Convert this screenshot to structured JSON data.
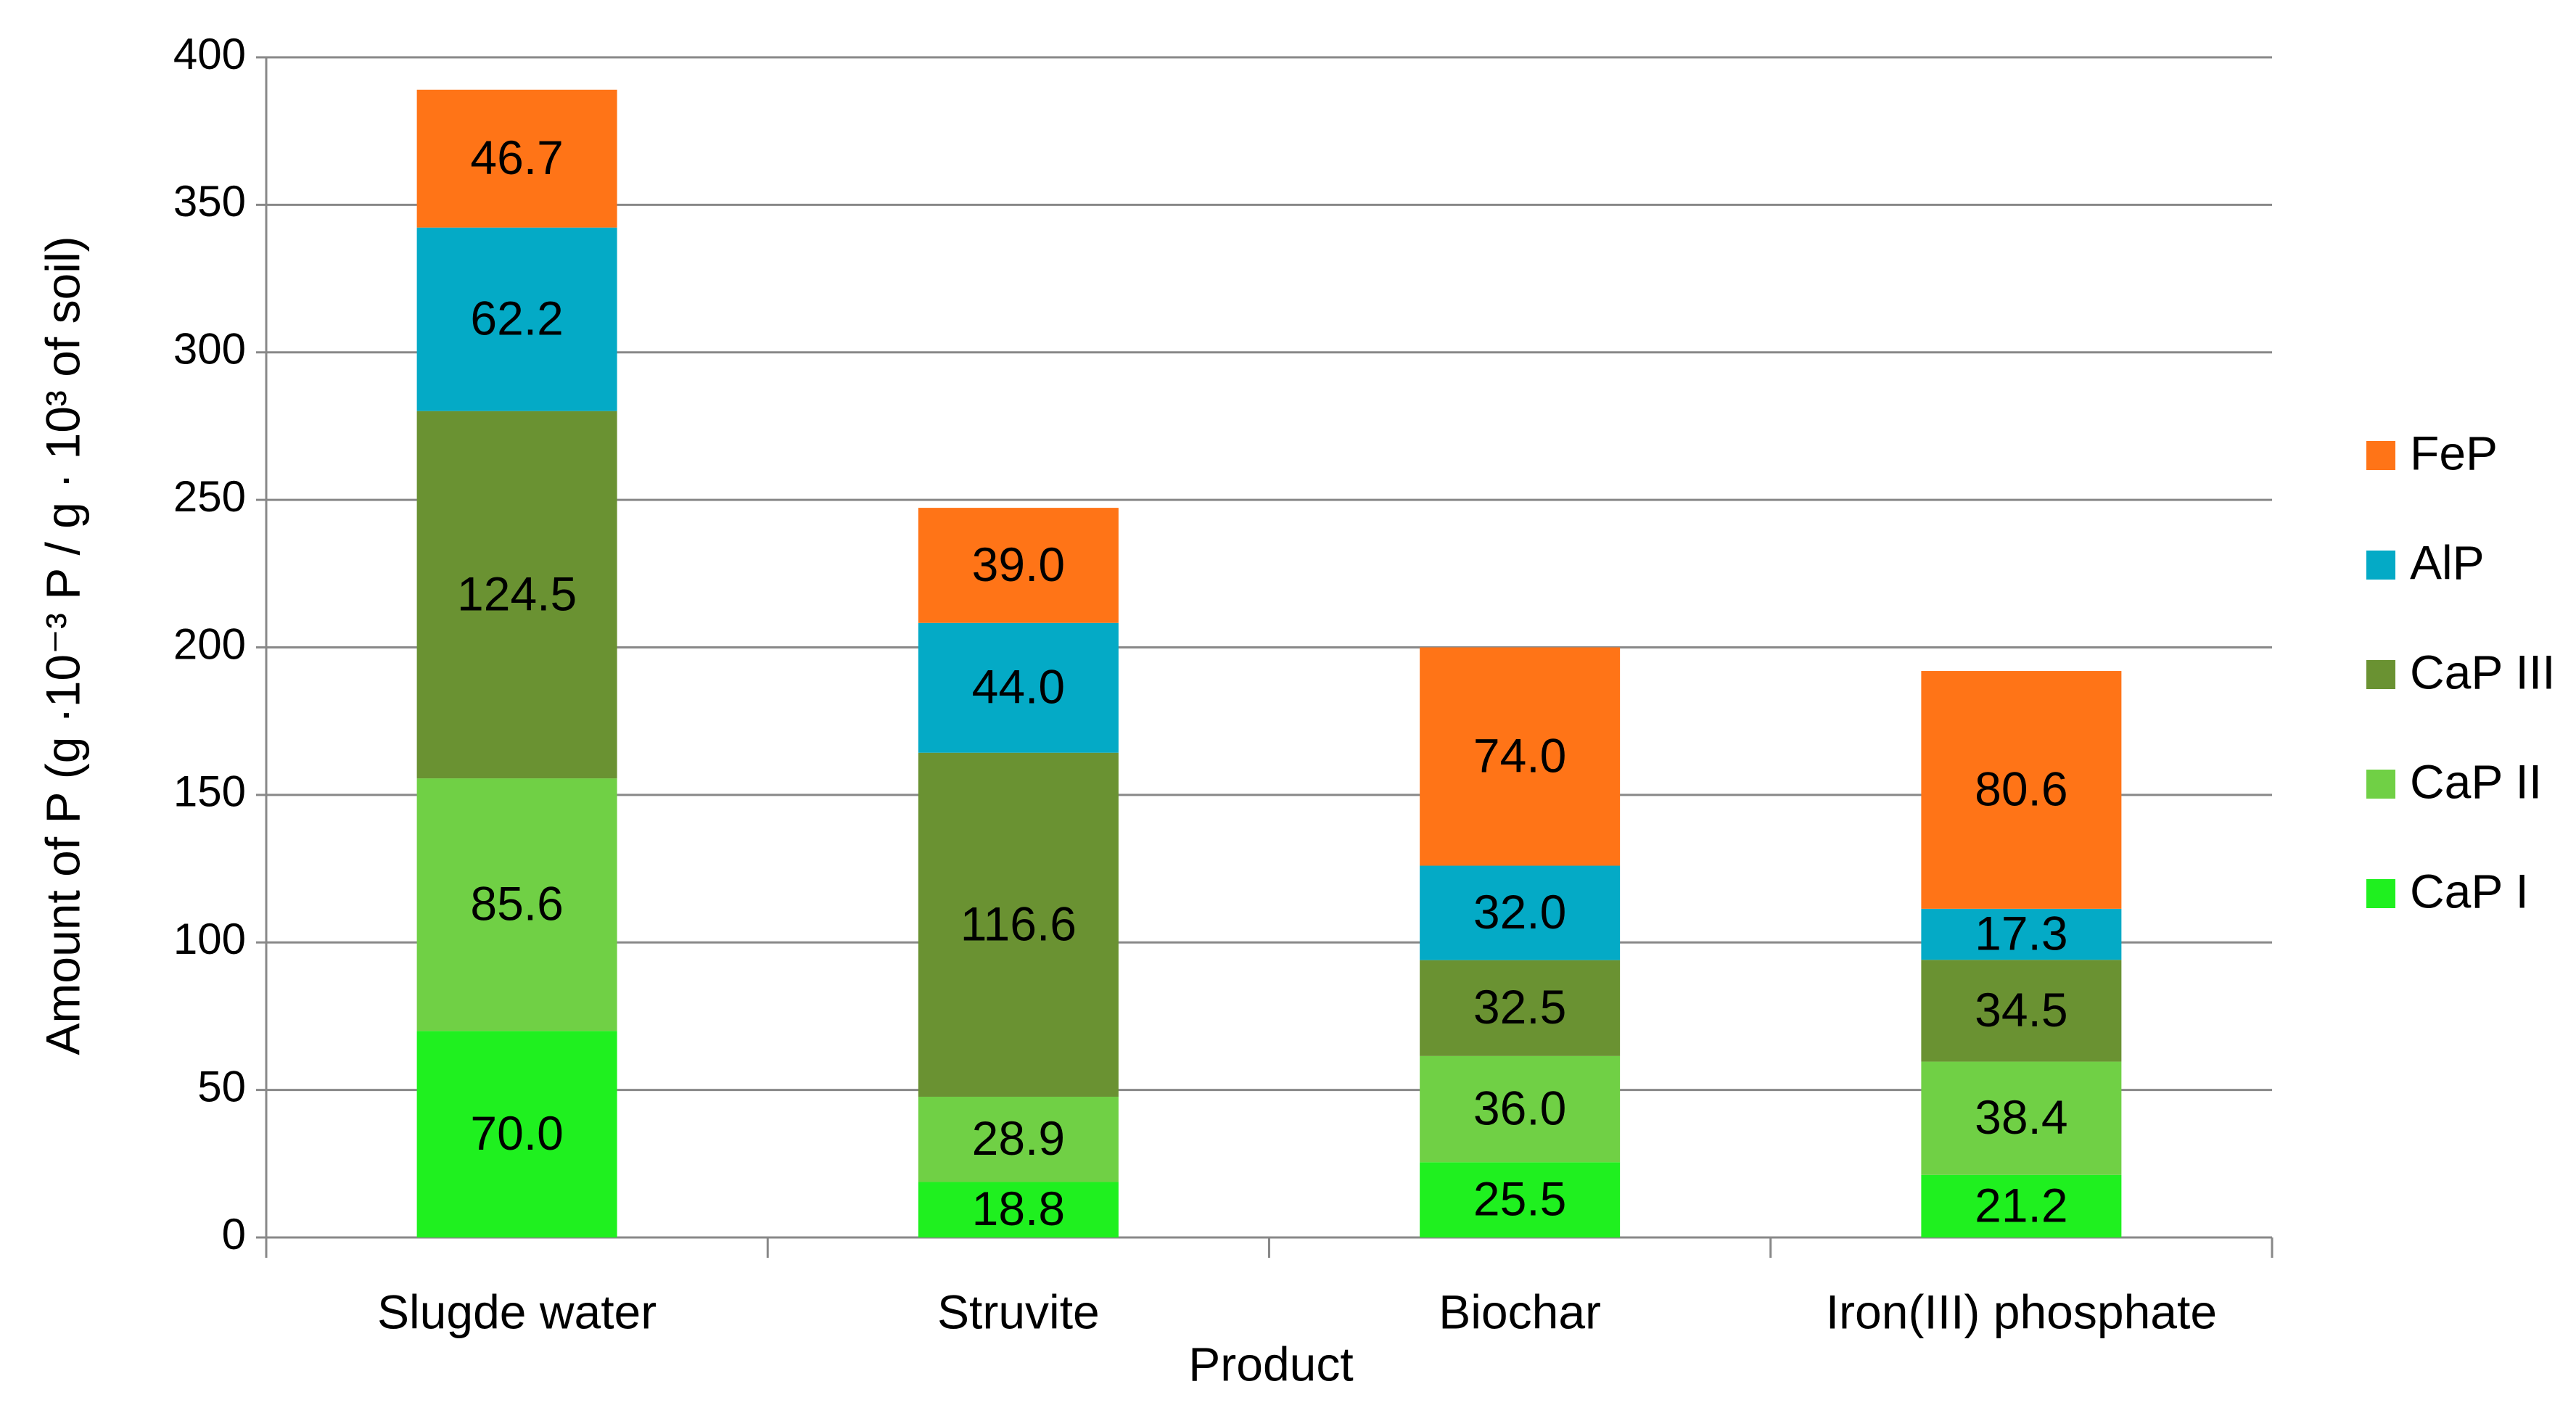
{
  "chart_data": {
    "type": "stacked_bar",
    "x_label": "Product",
    "y_label": "Amount of P (g ·10⁻³ P / g · 10³ of soil)",
    "categories": [
      "Slugde water",
      "Struvite",
      "Biochar",
      "Iron(III) phosphate"
    ],
    "series": [
      {
        "name": "CaP I",
        "color": "#1ff01f",
        "values": [
          70.0,
          18.8,
          25.5,
          21.2
        ],
        "value_labels": [
          "70.0",
          "18.8",
          "25.5",
          "21.2"
        ]
      },
      {
        "name": "CaP II",
        "color": "#70d045",
        "values": [
          85.6,
          28.9,
          36.0,
          38.4
        ],
        "value_labels": [
          "85.6",
          "28.9",
          "36.0",
          "38.4"
        ]
      },
      {
        "name": "CaP III",
        "color": "#6a9232",
        "values": [
          124.5,
          116.6,
          32.5,
          34.5
        ],
        "value_labels": [
          "124.5",
          "116.6",
          "32.5",
          "34.5"
        ]
      },
      {
        "name": "AlP",
        "color": "#04aac6",
        "values": [
          62.2,
          44.0,
          32.0,
          17.3
        ],
        "value_labels": [
          "62.2",
          "44.0",
          "32.0",
          "17.3"
        ]
      },
      {
        "name": "FeP",
        "color": "#ff7417",
        "values": [
          46.7,
          39.0,
          74.0,
          80.6
        ],
        "value_labels": [
          "46.7",
          "39.0",
          "74.0",
          "80.6"
        ]
      }
    ],
    "ylim": [
      0,
      400
    ],
    "yticks": [
      0,
      50,
      100,
      150,
      200,
      250,
      300,
      350,
      400
    ],
    "grid": true,
    "legend": "right"
  }
}
